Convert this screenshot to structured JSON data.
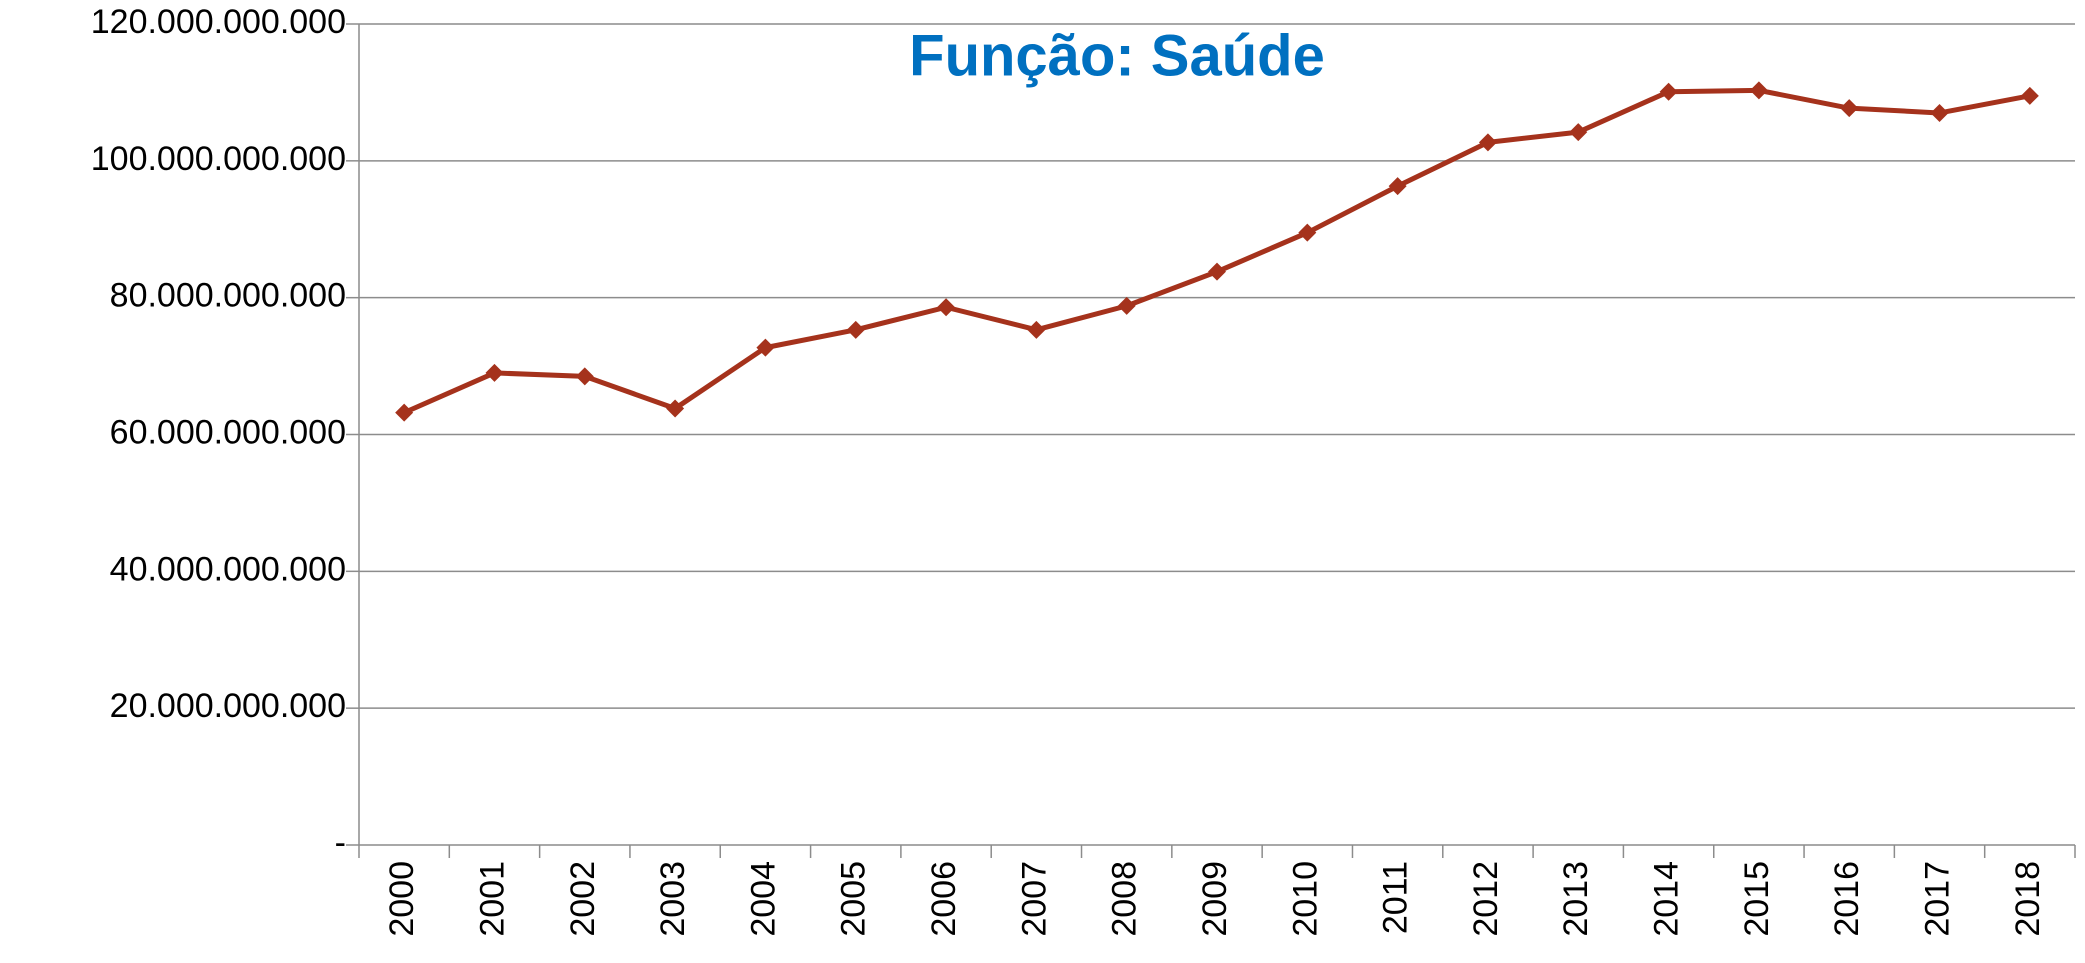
{
  "chart_data": {
    "type": "line",
    "title": "Função: Saúde",
    "categories": [
      "2000",
      "2001",
      "2002",
      "2003",
      "2004",
      "2005",
      "2006",
      "2007",
      "2008",
      "2009",
      "2010",
      "2011",
      "2012",
      "2013",
      "2014",
      "2015",
      "2016",
      "2017",
      "2018"
    ],
    "values": [
      63200000000,
      69000000000,
      68500000000,
      63800000000,
      72700000000,
      75300000000,
      78600000000,
      75300000000,
      78800000000,
      83800000000,
      89500000000,
      96300000000,
      102700000000,
      104200000000,
      110100000000,
      110300000000,
      107700000000,
      107000000000,
      109500000000
    ],
    "color": "#a5321c",
    "ylim": [
      0,
      120000000000
    ],
    "yticks": [
      {
        "value": 0,
        "label": "-"
      },
      {
        "value": 20000000000,
        "label": "20.000.000.000"
      },
      {
        "value": 40000000000,
        "label": "40.000.000.000"
      },
      {
        "value": 60000000000,
        "label": "60.000.000.000"
      },
      {
        "value": 80000000000,
        "label": "80.000.000.000"
      },
      {
        "value": 100000000000,
        "label": "100.000.000.000"
      },
      {
        "value": 120000000000,
        "label": "120.000.000.000"
      }
    ],
    "grid": true
  }
}
